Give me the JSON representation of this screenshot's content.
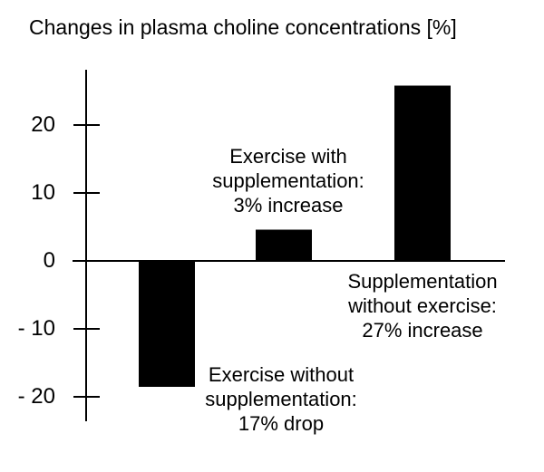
{
  "title": "Changes in plasma choline concentrations [%]",
  "colors": {
    "background": "#ffffff",
    "bar": "#000000",
    "axis": "#000000",
    "text": "#000000"
  },
  "chart_data": {
    "type": "bar",
    "title": "Changes in plasma choline concentrations [%]",
    "categories": [
      "Exercise without supplementation",
      "Exercise with supplementation",
      "Supplementation without exercise"
    ],
    "values": [
      -17,
      3,
      27
    ],
    "value_labels": [
      "17% drop",
      "3% increase",
      "27% increase"
    ],
    "drawn_values": [
      -18.5,
      4.6,
      25.8
    ],
    "bar_color": "#000000",
    "xlabel": "",
    "ylabel": "",
    "ylim": [
      -26,
      28
    ],
    "yticks": [
      {
        "value": 20,
        "label": "20"
      },
      {
        "value": 10,
        "label": "10"
      },
      {
        "value": 0,
        "label": "0"
      },
      {
        "value": -10,
        "label": "- 10"
      },
      {
        "value": -20,
        "label": "- 20"
      }
    ],
    "grid": false,
    "legend": false,
    "annotations": [
      {
        "target_bar": 0,
        "lines": [
          "Exercise without",
          "supplementation:",
          "17% drop"
        ]
      },
      {
        "target_bar": 1,
        "lines": [
          "Exercise with",
          "supplementation:",
          "3% increase"
        ]
      },
      {
        "target_bar": 2,
        "lines": [
          "Supplementation",
          "without exercise:",
          "27% increase"
        ]
      }
    ]
  }
}
